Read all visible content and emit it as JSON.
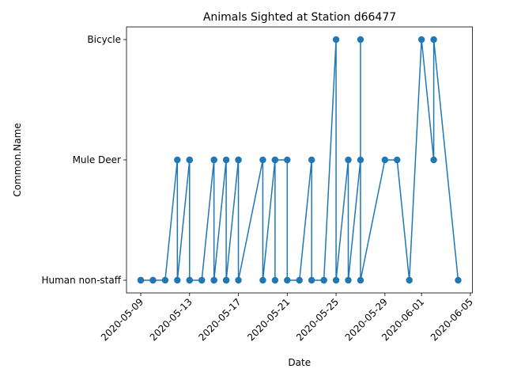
{
  "chart_data": {
    "type": "line",
    "title": "Animals Sighted at Station d66477",
    "xlabel": "Date",
    "ylabel": "Common.Name",
    "x_axis": "date",
    "xlim": [
      "2020-05-07T20:00",
      "2020-06-05T04:00"
    ],
    "x_ticks": [
      "2020-05-09",
      "2020-05-13",
      "2020-05-17",
      "2020-05-21",
      "2020-05-25",
      "2020-05-29",
      "2020-06-01",
      "2020-06-05"
    ],
    "categories": [
      "Human non-staff",
      "Mule Deer",
      "Bicycle"
    ],
    "grid": false,
    "legend": false,
    "color": "#1f77b4",
    "points": [
      [
        "2020-05-09",
        "Human non-staff"
      ],
      [
        "2020-05-09",
        "Human non-staff"
      ],
      [
        "2020-05-10",
        "Human non-staff"
      ],
      [
        "2020-05-10",
        "Human non-staff"
      ],
      [
        "2020-05-11",
        "Human non-staff"
      ],
      [
        "2020-05-12",
        "Mule Deer"
      ],
      [
        "2020-05-12",
        "Human non-staff"
      ],
      [
        "2020-05-13",
        "Mule Deer"
      ],
      [
        "2020-05-13",
        "Human non-staff"
      ],
      [
        "2020-05-13",
        "Mule Deer"
      ],
      [
        "2020-05-13",
        "Human non-staff"
      ],
      [
        "2020-05-14",
        "Human non-staff"
      ],
      [
        "2020-05-14",
        "Human non-staff"
      ],
      [
        "2020-05-15",
        "Mule Deer"
      ],
      [
        "2020-05-15",
        "Human non-staff"
      ],
      [
        "2020-05-15",
        "Mule Deer"
      ],
      [
        "2020-05-15",
        "Human non-staff"
      ],
      [
        "2020-05-16",
        "Mule Deer"
      ],
      [
        "2020-05-16",
        "Human non-staff"
      ],
      [
        "2020-05-16",
        "Human non-staff"
      ],
      [
        "2020-05-17",
        "Mule Deer"
      ],
      [
        "2020-05-17",
        "Mule Deer"
      ],
      [
        "2020-05-17",
        "Human non-staff"
      ],
      [
        "2020-05-19",
        "Mule Deer"
      ],
      [
        "2020-05-19",
        "Human non-staff"
      ],
      [
        "2020-05-20",
        "Mule Deer"
      ],
      [
        "2020-05-20",
        "Human non-staff"
      ],
      [
        "2020-05-20",
        "Mule Deer"
      ],
      [
        "2020-05-21",
        "Mule Deer"
      ],
      [
        "2020-05-21",
        "Human non-staff"
      ],
      [
        "2020-05-22",
        "Human non-staff"
      ],
      [
        "2020-05-23",
        "Mule Deer"
      ],
      [
        "2020-05-23",
        "Human non-staff"
      ],
      [
        "2020-05-24",
        "Human non-staff"
      ],
      [
        "2020-05-24",
        "Human non-staff"
      ],
      [
        "2020-05-25",
        "Bicycle"
      ],
      [
        "2020-05-25",
        "Human non-staff"
      ],
      [
        "2020-05-26",
        "Mule Deer"
      ],
      [
        "2020-05-26",
        "Human non-staff"
      ],
      [
        "2020-05-27",
        "Mule Deer"
      ],
      [
        "2020-05-27",
        "Bicycle"
      ],
      [
        "2020-05-27",
        "Human non-staff"
      ],
      [
        "2020-05-29",
        "Mule Deer"
      ],
      [
        "2020-05-30",
        "Mule Deer"
      ],
      [
        "2020-05-31",
        "Human non-staff"
      ],
      [
        "2020-06-01",
        "Bicycle"
      ],
      [
        "2020-06-02",
        "Mule Deer"
      ],
      [
        "2020-06-02",
        "Bicycle"
      ],
      [
        "2020-06-04",
        "Human non-staff"
      ]
    ]
  }
}
